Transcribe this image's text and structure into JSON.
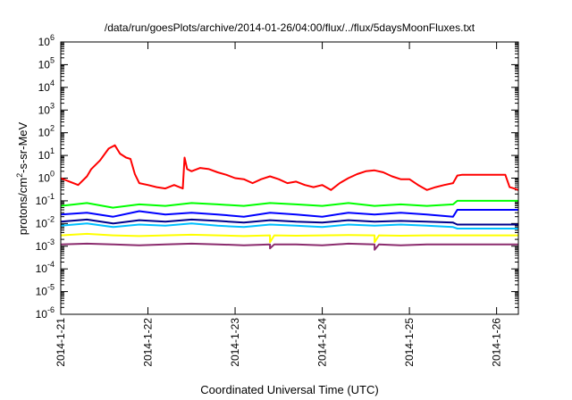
{
  "chart_data": {
    "type": "line",
    "title": "/data/run/goesPlots/archive/2014-01-26/04:00/flux/../flux/5daysMoonFluxes.txt",
    "xlabel": "Coordinated Universal Time (UTC)",
    "ylabel_parts": {
      "pre": "protons/cm",
      "sup": "2",
      "post": "-s-sr-MeV"
    },
    "y_scale": "log",
    "ylim": [
      1e-06,
      1000000.0
    ],
    "y_ticks": [
      {
        "exp": "-6",
        "value": 1e-06
      },
      {
        "exp": "-5",
        "value": 1e-05
      },
      {
        "exp": "-4",
        "value": 0.0001
      },
      {
        "exp": "-3",
        "value": 0.001
      },
      {
        "exp": "-2",
        "value": 0.01
      },
      {
        "exp": "-1",
        "value": 0.1
      },
      {
        "exp": "0",
        "value": 1
      },
      {
        "exp": "1",
        "value": 10
      },
      {
        "exp": "2",
        "value": 100
      },
      {
        "exp": "3",
        "value": 1000
      },
      {
        "exp": "4",
        "value": 10000
      },
      {
        "exp": "5",
        "value": 100000
      },
      {
        "exp": "6",
        "value": 1000000
      }
    ],
    "y_tick_base": "10",
    "xlim": [
      0,
      5.25
    ],
    "x_ticks": [
      {
        "label": "2014-1-21",
        "value": 0
      },
      {
        "label": "2014-1-22",
        "value": 1
      },
      {
        "label": "2014-1-23",
        "value": 2
      },
      {
        "label": "2014-1-24",
        "value": 3
      },
      {
        "label": "2014-1-25",
        "value": 4
      },
      {
        "label": "2014-1-26",
        "value": 5
      }
    ],
    "grid": false,
    "series": [
      {
        "color": "#ff0000",
        "x": [
          0,
          0.1,
          0.2,
          0.3,
          0.35,
          0.45,
          0.55,
          0.62,
          0.68,
          0.75,
          0.8,
          0.85,
          0.9,
          1.0,
          1.1,
          1.2,
          1.3,
          1.4,
          1.42,
          1.45,
          1.5,
          1.6,
          1.7,
          1.8,
          1.9,
          2.0,
          2.1,
          2.2,
          2.3,
          2.4,
          2.5,
          2.6,
          2.7,
          2.8,
          2.9,
          3.0,
          3.1,
          3.2,
          3.3,
          3.4,
          3.5,
          3.6,
          3.7,
          3.8,
          3.9,
          4.0,
          4.1,
          4.2,
          4.3,
          4.4,
          4.5,
          4.55,
          4.6,
          4.9,
          5.1,
          5.15,
          5.2,
          5.25
        ],
        "y": [
          1.0,
          0.7,
          0.5,
          1.2,
          2.5,
          6.0,
          20,
          28,
          12,
          8,
          7,
          1.5,
          0.6,
          0.5,
          0.4,
          0.35,
          0.5,
          0.35,
          8.0,
          2.5,
          2.0,
          2.8,
          2.5,
          1.8,
          1.4,
          1.0,
          0.9,
          0.6,
          0.9,
          1.2,
          0.9,
          0.6,
          0.7,
          0.5,
          0.4,
          0.5,
          0.3,
          0.6,
          1.0,
          1.5,
          2.0,
          2.2,
          1.8,
          1.2,
          0.9,
          0.9,
          0.5,
          0.3,
          0.4,
          0.5,
          0.6,
          1.3,
          1.4,
          1.4,
          1.4,
          0.4,
          0.35,
          0.3
        ]
      },
      {
        "color": "#00ff00",
        "x": [
          0,
          0.3,
          0.6,
          0.9,
          1.2,
          1.5,
          1.8,
          2.1,
          2.4,
          2.7,
          3.0,
          3.3,
          3.6,
          3.9,
          4.2,
          4.5,
          4.55,
          5.25
        ],
        "y": [
          0.06,
          0.08,
          0.05,
          0.07,
          0.06,
          0.08,
          0.07,
          0.06,
          0.08,
          0.07,
          0.06,
          0.08,
          0.06,
          0.07,
          0.06,
          0.07,
          0.1,
          0.1
        ]
      },
      {
        "color": "#0000ff",
        "x": [
          0,
          0.3,
          0.6,
          0.9,
          1.2,
          1.5,
          1.8,
          2.1,
          2.4,
          2.7,
          3.0,
          3.3,
          3.6,
          3.9,
          4.2,
          4.5,
          4.55,
          5.25
        ],
        "y": [
          0.025,
          0.03,
          0.02,
          0.035,
          0.025,
          0.03,
          0.025,
          0.02,
          0.03,
          0.025,
          0.02,
          0.03,
          0.025,
          0.03,
          0.025,
          0.02,
          0.04,
          0.04
        ]
      },
      {
        "color": "#00008b",
        "x": [
          0,
          0.3,
          0.6,
          0.9,
          1.2,
          1.5,
          1.8,
          2.1,
          2.4,
          2.7,
          3.0,
          3.3,
          3.6,
          3.9,
          4.2,
          4.5,
          4.55,
          5.25
        ],
        "y": [
          0.012,
          0.015,
          0.01,
          0.014,
          0.012,
          0.015,
          0.013,
          0.011,
          0.014,
          0.012,
          0.011,
          0.014,
          0.012,
          0.013,
          0.012,
          0.011,
          0.009,
          0.009
        ]
      },
      {
        "color": "#00bfff",
        "x": [
          0,
          0.3,
          0.6,
          0.9,
          1.2,
          1.5,
          1.8,
          2.1,
          2.4,
          2.7,
          3.0,
          3.3,
          3.6,
          3.9,
          4.2,
          4.5,
          4.55,
          5.25
        ],
        "y": [
          0.008,
          0.01,
          0.007,
          0.009,
          0.008,
          0.01,
          0.008,
          0.007,
          0.009,
          0.008,
          0.007,
          0.009,
          0.008,
          0.009,
          0.008,
          0.007,
          0.006,
          0.006
        ]
      },
      {
        "color": "#ffff00",
        "x": [
          0,
          0.3,
          0.6,
          0.9,
          1.2,
          1.5,
          1.8,
          2.1,
          2.4,
          2.4,
          2.45,
          2.7,
          3.0,
          3.3,
          3.6,
          3.6,
          3.65,
          3.9,
          4.2,
          4.5,
          4.55,
          5.25
        ],
        "y": [
          0.003,
          0.0035,
          0.003,
          0.0028,
          0.003,
          0.0032,
          0.003,
          0.0028,
          0.003,
          0.0015,
          0.003,
          0.0029,
          0.003,
          0.0031,
          0.003,
          0.0015,
          0.003,
          0.0029,
          0.003,
          0.003,
          0.003,
          0.003
        ]
      },
      {
        "color": "#8b2c6e",
        "x": [
          0,
          0.3,
          0.6,
          0.9,
          1.2,
          1.5,
          1.8,
          2.1,
          2.4,
          2.4,
          2.45,
          2.7,
          3.0,
          3.3,
          3.6,
          3.6,
          3.65,
          3.9,
          4.2,
          4.5,
          4.55,
          5.25
        ],
        "y": [
          0.0012,
          0.0013,
          0.0012,
          0.0011,
          0.0012,
          0.0013,
          0.0012,
          0.0011,
          0.0012,
          0.0008,
          0.0012,
          0.0012,
          0.0011,
          0.0013,
          0.0012,
          0.0007,
          0.0012,
          0.0011,
          0.0012,
          0.0012,
          0.0012,
          0.0012
        ]
      }
    ]
  }
}
